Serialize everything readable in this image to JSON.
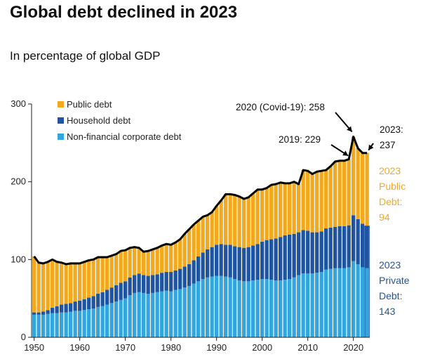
{
  "title": "Global debt declined in 2023",
  "subtitle": "In percentage of global GDP",
  "colors": {
    "public": "#F2A91E",
    "household": "#1F55A0",
    "corporate": "#33A6DE",
    "total_line": "#000000",
    "axis": "#222222"
  },
  "chart_data": {
    "type": "bar",
    "stacked": true,
    "title": "Global debt declined in 2023",
    "subtitle": "In percentage of global GDP",
    "xlabel": "",
    "ylabel": "",
    "ylim": [
      0,
      300
    ],
    "yticks": [
      0,
      100,
      200,
      300
    ],
    "xticks": [
      1950,
      1960,
      1970,
      1980,
      1990,
      2000,
      2010,
      2020
    ],
    "legend": [
      "Public debt",
      "Household debt",
      "Non-financial corporate debt"
    ],
    "x": [
      1950,
      1951,
      1952,
      1953,
      1954,
      1955,
      1956,
      1957,
      1958,
      1959,
      1960,
      1961,
      1962,
      1963,
      1964,
      1965,
      1966,
      1967,
      1968,
      1969,
      1970,
      1971,
      1972,
      1973,
      1974,
      1975,
      1976,
      1977,
      1978,
      1979,
      1980,
      1981,
      1982,
      1983,
      1984,
      1985,
      1986,
      1987,
      1988,
      1989,
      1990,
      1991,
      1992,
      1993,
      1994,
      1995,
      1996,
      1997,
      1998,
      1999,
      2000,
      2001,
      2002,
      2003,
      2004,
      2005,
      2006,
      2007,
      2008,
      2009,
      2010,
      2011,
      2012,
      2013,
      2014,
      2015,
      2016,
      2017,
      2018,
      2019,
      2020,
      2021,
      2022,
      2023
    ],
    "series": [
      {
        "name": "Non-financial corporate debt",
        "values": [
          29,
          29,
          29,
          30,
          31,
          31,
          32,
          32,
          33,
          34,
          34,
          35,
          36,
          37,
          39,
          40,
          42,
          44,
          46,
          48,
          50,
          54,
          57,
          58,
          57,
          56,
          57,
          58,
          59,
          60,
          59,
          61,
          62,
          64,
          66,
          69,
          72,
          75,
          77,
          78,
          79,
          79,
          78,
          77,
          75,
          73,
          72,
          72,
          73,
          74,
          75,
          75,
          74,
          73,
          73,
          74,
          75,
          77,
          80,
          82,
          82,
          82,
          83,
          84,
          87,
          88,
          89,
          89,
          89,
          90,
          98,
          94,
          90,
          89
        ]
      },
      {
        "name": "Household debt",
        "values": [
          3,
          3,
          4,
          5,
          7,
          9,
          10,
          11,
          11,
          12,
          13,
          14,
          15,
          16,
          17,
          18,
          19,
          20,
          21,
          22,
          22,
          23,
          23,
          24,
          23,
          23,
          23,
          23,
          24,
          24,
          25,
          25,
          26,
          27,
          28,
          30,
          32,
          34,
          36,
          38,
          40,
          41,
          41,
          42,
          42,
          43,
          43,
          44,
          45,
          46,
          48,
          50,
          52,
          54,
          56,
          57,
          57,
          56,
          55,
          56,
          55,
          53,
          52,
          52,
          53,
          53,
          53,
          54,
          54,
          54,
          59,
          58,
          56,
          54
        ]
      },
      {
        "name": "Public debt",
        "values": [
          72,
          64,
          62,
          62,
          62,
          57,
          54,
          51,
          51,
          49,
          48,
          48,
          48,
          47,
          47,
          45,
          42,
          41,
          40,
          41,
          40,
          38,
          36,
          33,
          30,
          32,
          33,
          34,
          35,
          36,
          35,
          36,
          38,
          42,
          45,
          46,
          46,
          46,
          44,
          45,
          50,
          56,
          65,
          65,
          66,
          65,
          63,
          64,
          67,
          70,
          67,
          67,
          70,
          70,
          70,
          67,
          66,
          67,
          62,
          77,
          77,
          75,
          78,
          78,
          75,
          79,
          84,
          84,
          84,
          85,
          101,
          91,
          91,
          94
        ]
      }
    ],
    "annotations": [
      {
        "text": "2019: 229",
        "year": 2019,
        "value": 229
      },
      {
        "text": "2020 (Covid-19): 258",
        "year": 2020,
        "value": 258
      },
      {
        "text_line1": "2023:",
        "text_line2": "237",
        "year": 2023,
        "value": 237
      }
    ],
    "side_labels": {
      "public": [
        "2023",
        "Public",
        "Debt:",
        "94"
      ],
      "private": [
        "2023",
        "Private",
        "Debt:",
        "143"
      ]
    }
  }
}
